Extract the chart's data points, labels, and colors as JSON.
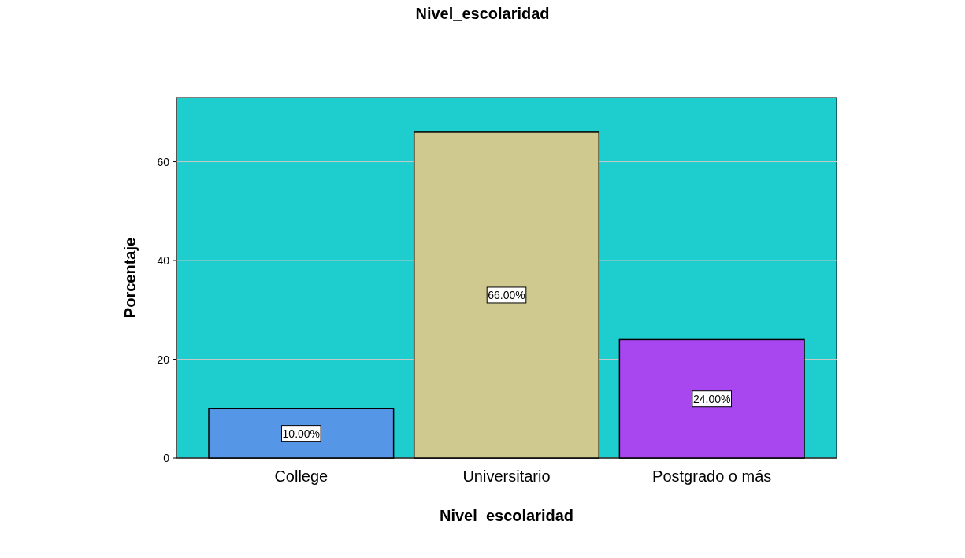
{
  "chart_data": {
    "type": "bar",
    "title": "Nivel_escolaridad",
    "xlabel": "Nivel_escolaridad",
    "ylabel": "Porcentaje",
    "categories": [
      "College",
      "Universitario",
      "Postgrado o más"
    ],
    "values": [
      10,
      66,
      24
    ],
    "colors": [
      "#5596e6",
      "#cfc98f",
      "#a846f0"
    ],
    "value_labels": [
      "10.00%",
      "66.00%",
      "24.00%"
    ],
    "ylim": [
      0,
      73
    ],
    "yticks": [
      0,
      20,
      40,
      60
    ],
    "grid": "y"
  }
}
